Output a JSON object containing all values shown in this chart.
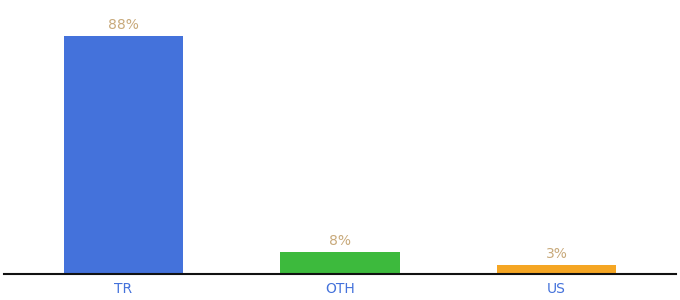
{
  "categories": [
    "TR",
    "OTH",
    "US"
  ],
  "values": [
    88,
    8,
    3
  ],
  "bar_colors": [
    "#4472db",
    "#3dba3d",
    "#f5a623"
  ],
  "labels": [
    "88%",
    "8%",
    "3%"
  ],
  "label_color": "#c8a97a",
  "background_color": "#ffffff",
  "ylim": [
    0,
    100
  ],
  "bar_width": 0.55,
  "label_fontsize": 10,
  "tick_fontsize": 10,
  "tick_color": "#4472db",
  "axis_line_color": "#111111"
}
